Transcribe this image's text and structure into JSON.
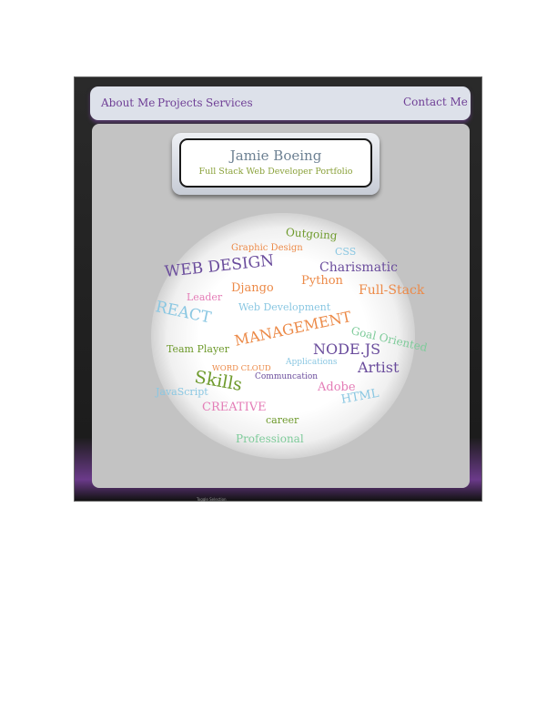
{
  "nav": {
    "about": "About Me",
    "projects": "Projects",
    "services": "Services",
    "contact": "Contact Me"
  },
  "header": {
    "name": "Jamie Boeing",
    "tagline": "Full Stack Web Developer Portfolio"
  },
  "word_cloud": {
    "words": [
      {
        "text": "Outgoing",
        "color": "#6e9a2c"
      },
      {
        "text": "Graphic Design",
        "color": "#ec8a48"
      },
      {
        "text": "CSS",
        "color": "#8ac7e2"
      },
      {
        "text": "WEB DESIGN",
        "color": "#6a4c9c"
      },
      {
        "text": "Charismatic",
        "color": "#6a4c9c"
      },
      {
        "text": "Python",
        "color": "#ec8a48"
      },
      {
        "text": "Django",
        "color": "#ec8a48"
      },
      {
        "text": "Full-Stack",
        "color": "#ec8a48"
      },
      {
        "text": "Leader",
        "color": "#e47db7"
      },
      {
        "text": "REACT",
        "color": "#8ac7e2"
      },
      {
        "text": "Web Development",
        "color": "#8ac7e2"
      },
      {
        "text": "MANAGEMENT",
        "color": "#ec8a48"
      },
      {
        "text": "Goal Oriented",
        "color": "#7ecb9a"
      },
      {
        "text": "Team Player",
        "color": "#6e9a2c"
      },
      {
        "text": "NODE.JS",
        "color": "#6a4c9c"
      },
      {
        "text": "Applications",
        "color": "#8ac7e2"
      },
      {
        "text": "WORD CLOUD",
        "color": "#ec8a48"
      },
      {
        "text": "Artist",
        "color": "#6a4c9c"
      },
      {
        "text": "Skills",
        "color": "#6e9a2c"
      },
      {
        "text": "Communcation",
        "color": "#6a4c9c"
      },
      {
        "text": "Adobe",
        "color": "#e47db7"
      },
      {
        "text": "JavaScript",
        "color": "#8ac7e2"
      },
      {
        "text": "HTML",
        "color": "#8ac7e2"
      },
      {
        "text": "CREATIVE",
        "color": "#e47db7"
      },
      {
        "text": "career",
        "color": "#6e9a2c"
      },
      {
        "text": "Professional",
        "color": "#7ecb9a"
      }
    ]
  },
  "toolbar": {
    "label": "Toggle Selection"
  }
}
